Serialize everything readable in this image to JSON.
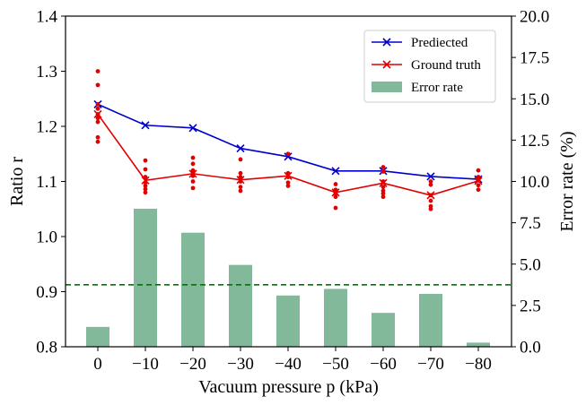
{
  "chart_data": {
    "type": "bar+line+scatter",
    "categories": [
      "0",
      "−10",
      "−20",
      "−30",
      "−40",
      "−50",
      "−60",
      "−70",
      "−80"
    ],
    "x_values": [
      0,
      -10,
      -20,
      -30,
      -40,
      -50,
      -60,
      -70,
      -80
    ],
    "xlabel": "Vacuum pressure p (kPa)",
    "ylabel_left": "Ratio r",
    "ylabel_right": "Error rate (%)",
    "ylim_left": [
      0.8,
      1.4
    ],
    "yticks_left": [
      "0.8",
      "0.9",
      "1.0",
      "1.1",
      "1.2",
      "1.3",
      "1.4"
    ],
    "yticks_left_values": [
      0.8,
      0.9,
      1.0,
      1.1,
      1.2,
      1.3,
      1.4
    ],
    "ylim_right": [
      0.0,
      20.0
    ],
    "yticks_right": [
      "0.0",
      "2.5",
      "5.0",
      "7.5",
      "10.0",
      "12.5",
      "15.0",
      "17.5",
      "20.0"
    ],
    "yticks_right_values": [
      0.0,
      2.5,
      5.0,
      7.5,
      10.0,
      12.5,
      15.0,
      17.5,
      20.0
    ],
    "series": [
      {
        "name": "Prediected",
        "type": "line",
        "axis": "left",
        "color": "#0000cc",
        "marker": "x",
        "values": [
          1.24,
          1.202,
          1.197,
          1.16,
          1.145,
          1.119,
          1.119,
          1.109,
          1.104
        ]
      },
      {
        "name": "Ground truth",
        "type": "line",
        "axis": "left",
        "color": "#e00000",
        "marker": "x",
        "values": [
          1.222,
          1.102,
          1.114,
          1.103,
          1.11,
          1.08,
          1.097,
          1.075,
          1.101
        ]
      },
      {
        "name": "Error rate",
        "type": "bar",
        "axis": "right",
        "color": "#82b99b",
        "values": [
          1.2,
          8.35,
          6.9,
          4.95,
          3.1,
          3.5,
          2.05,
          3.2,
          0.25
        ]
      }
    ],
    "scatter": {
      "axis": "left",
      "color": "#e00000",
      "points": [
        [
          0,
          1.3
        ],
        [
          0,
          1.275
        ],
        [
          0,
          1.24
        ],
        [
          0,
          1.232
        ],
        [
          0,
          1.222
        ],
        [
          0,
          1.215
        ],
        [
          0,
          1.208
        ],
        [
          0,
          1.18
        ],
        [
          0,
          1.172
        ],
        [
          -10,
          1.138
        ],
        [
          -10,
          1.122
        ],
        [
          -10,
          1.108
        ],
        [
          -10,
          1.098
        ],
        [
          -10,
          1.092
        ],
        [
          -10,
          1.086
        ],
        [
          -10,
          1.08
        ],
        [
          -20,
          1.143
        ],
        [
          -20,
          1.132
        ],
        [
          -20,
          1.12
        ],
        [
          -20,
          1.115
        ],
        [
          -20,
          1.11
        ],
        [
          -20,
          1.1
        ],
        [
          -20,
          1.088
        ],
        [
          -30,
          1.14
        ],
        [
          -30,
          1.115
        ],
        [
          -30,
          1.108
        ],
        [
          -30,
          1.1
        ],
        [
          -30,
          1.09
        ],
        [
          -30,
          1.083
        ],
        [
          -40,
          1.15
        ],
        [
          -40,
          1.115
        ],
        [
          -40,
          1.108
        ],
        [
          -40,
          1.098
        ],
        [
          -40,
          1.092
        ],
        [
          -50,
          1.095
        ],
        [
          -50,
          1.085
        ],
        [
          -50,
          1.078
        ],
        [
          -50,
          1.072
        ],
        [
          -50,
          1.052
        ],
        [
          -60,
          1.126
        ],
        [
          -60,
          1.118
        ],
        [
          -60,
          1.1
        ],
        [
          -60,
          1.09
        ],
        [
          -60,
          1.083
        ],
        [
          -60,
          1.078
        ],
        [
          -60,
          1.072
        ],
        [
          -70,
          1.1
        ],
        [
          -70,
          1.094
        ],
        [
          -70,
          1.075
        ],
        [
          -70,
          1.065
        ],
        [
          -70,
          1.055
        ],
        [
          -70,
          1.05
        ],
        [
          -80,
          1.12
        ],
        [
          -80,
          1.108
        ],
        [
          -80,
          1.102
        ],
        [
          -80,
          1.093
        ],
        [
          -80,
          1.085
        ]
      ]
    },
    "hline": {
      "axis": "right",
      "value": 3.75,
      "style": "dashed",
      "color": "#007700"
    },
    "legend": {
      "placement": "top-right",
      "entries": [
        "Prediected",
        "Ground truth",
        "Error rate"
      ]
    },
    "grid": false
  }
}
